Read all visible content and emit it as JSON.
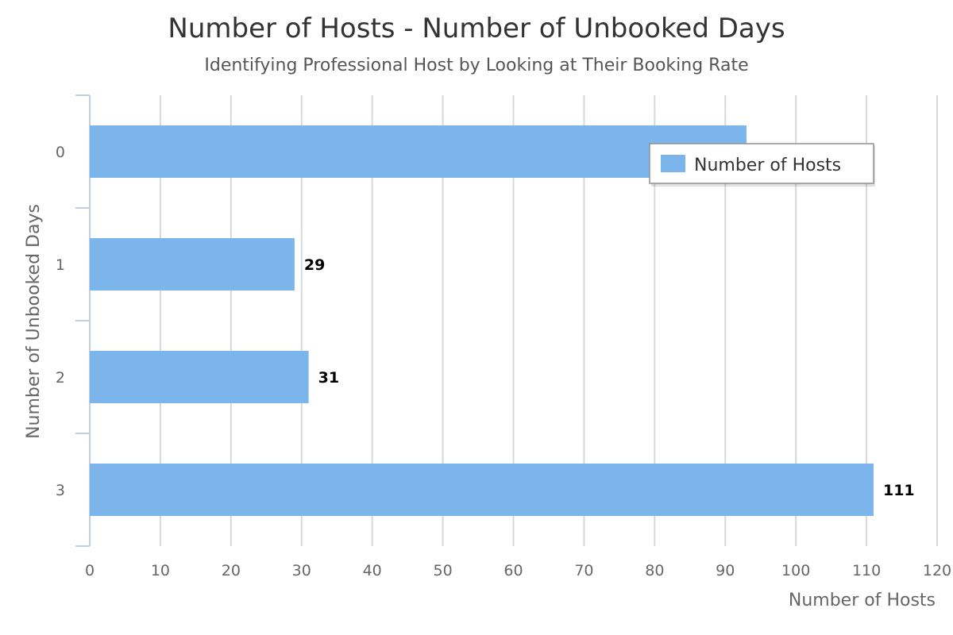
{
  "chart_data": {
    "type": "bar",
    "orientation": "horizontal",
    "title": "Number of Hosts - Number of Unbooked Days",
    "subtitle": "Identifying Professional Host by Looking at Their Booking Rate",
    "categories": [
      "0",
      "1",
      "2",
      "3"
    ],
    "series": [
      {
        "name": "Number of Hosts",
        "values": [
          93,
          29,
          31,
          111
        ],
        "color": "#7cb5ec"
      }
    ],
    "data_labels": [
      "",
      "29",
      "31",
      "111"
    ],
    "xlabel": "Number of Hosts",
    "ylabel": "Number of Unbooked Days",
    "xlim": [
      0,
      120
    ],
    "xticks": [
      0,
      10,
      20,
      30,
      40,
      50,
      60,
      70,
      80,
      90,
      100,
      110,
      120
    ],
    "grid": true,
    "legend": "top-right"
  }
}
